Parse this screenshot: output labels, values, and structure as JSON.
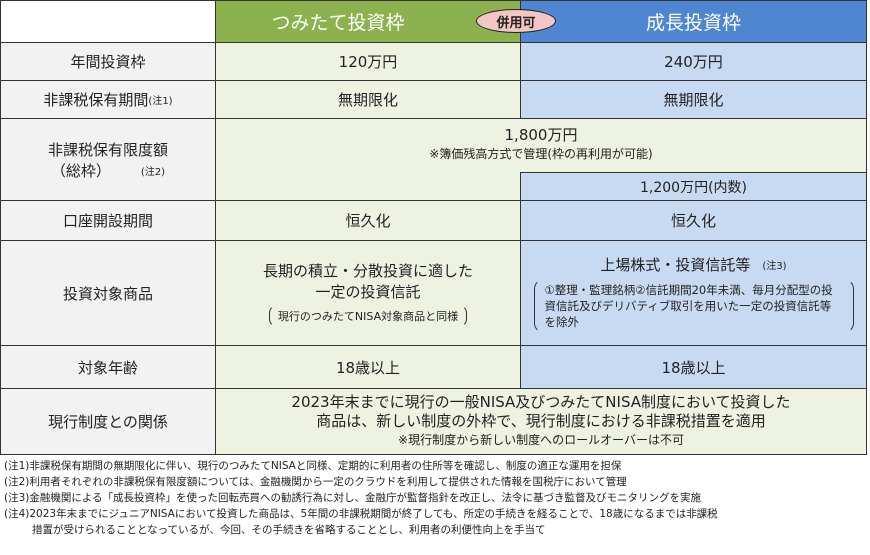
{
  "header": {
    "tsumitate": "つみたて投資枠",
    "combined_badge": "併用可",
    "growth": "成長投資枠"
  },
  "rows": {
    "annual": {
      "label": "年間投資枠",
      "tsumitate": "120万円",
      "growth": "240万円"
    },
    "period": {
      "label": "非課税保有期間",
      "note": "(注1)",
      "tsumitate": "無期限化",
      "growth": "無期限化"
    },
    "limit": {
      "label": "非課税保有限度額",
      "label2": "（総枠）",
      "note": "(注2)",
      "total": "1,800万円",
      "total_sub": "※簿価残高方式で管理(枠の再利用が可能)",
      "growth": "1,200万円(内数)"
    },
    "account": {
      "label": "口座開設期間",
      "tsumitate": "恒久化",
      "growth": "恒久化"
    },
    "products": {
      "label": "投資対象商品",
      "tsumitate_line1": "長期の積立・分散投資に適した",
      "tsumitate_line2": "一定の投資信託",
      "tsumitate_note": "現行のつみたてNISA対象商品と同様",
      "growth_main": "上場株式・投資信託等",
      "growth_note_ref": "(注3)",
      "growth_excl": "①整理・監理銘柄②信託期間20年未満、毎月分配型の投資信託及びデリバティブ取引を用いた一定の投資信託等を除外"
    },
    "age": {
      "label": "対象年齢",
      "tsumitate": "18歳以上",
      "growth": "18歳以上"
    },
    "relation": {
      "label": "現行制度との関係",
      "line1": "2023年末までに現行の一般NISA及びつみたてNISA制度において投資した",
      "line2": "商品は、新しい制度の外枠で、現行制度における非課税措置を適用",
      "line3": "※現行制度から新しい制度へのロールオーバーは不可"
    }
  },
  "notes": [
    "(注1)非課税保有期間の無期限化に伴い、現行のつみたてNISAと同様、定期的に利用者の住所等を確認し、制度の適正な運用を担保",
    "(注2)利用者それぞれの非課税保有限度額については、金融機関から一定のクラウドを利用して提供された情報を国税庁において管理",
    "(注3)金融機関による「成長投資枠」を使った回転売買への勧誘行為に対し、金融庁が監督指針を改正し、法令に基づき監督及びモニタリングを実施",
    "(注4)2023年末までにジュニアNISAにおいて投資した商品は、5年間の非課税期間が終了しても、所定の手続きを経ることで、18歳になるまでは非課税",
    "措置が受けられることとなっているが、今回、その手続きを省略することとし、利用者の利便性向上を手当て"
  ],
  "colors": {
    "tsumitate_header": "#8cb24f",
    "growth_header": "#4f86d2",
    "tsumitate_cell": "#eef2e1",
    "growth_cell": "#c8daf2",
    "badge": "#f5c6c6"
  }
}
